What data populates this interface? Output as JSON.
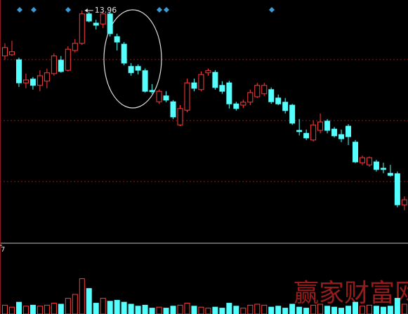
{
  "chart_data": {
    "type": "candlestick",
    "annotation": "13.96",
    "up_color": "#ff3c3c",
    "down_color": "#54ffff",
    "ylim": [
      8.46,
      14.21
    ],
    "open": [
      12.88,
      12.91,
      12.79,
      12.24,
      12.33,
      12.18,
      12.28,
      12.46,
      12.78,
      12.54,
      13.01,
      13.18,
      13.88,
      13.66,
      13.64,
      13.88,
      13.34,
      13.16,
      12.63,
      12.63,
      12.53,
      12.06,
      11.79,
      11.93,
      11.79,
      11.24,
      11.59,
      12.24,
      12.08,
      12.48,
      12.49,
      12.18,
      12.24,
      11.74,
      11.71,
      11.78,
      11.91,
      11.98,
      12.08,
      11.88,
      11.78,
      11.71,
      11.11,
      11.04,
      10.88,
      11.11,
      11.33,
      11.14,
      11.01,
      11.21,
      10.83,
      10.34,
      10.29,
      10.36,
      10.21,
      10.09,
      10.08,
      9.34
    ],
    "high": [
      13.18,
      13.24,
      12.84,
      12.46,
      12.38,
      12.54,
      12.58,
      12.94,
      12.88,
      13.11,
      13.28,
      13.96,
      13.93,
      13.74,
      13.93,
      13.93,
      13.41,
      13.21,
      12.71,
      12.68,
      12.58,
      12.21,
      12.08,
      12.04,
      11.83,
      11.71,
      12.34,
      12.34,
      12.51,
      12.58,
      12.54,
      12.28,
      12.29,
      11.79,
      11.84,
      12.08,
      12.24,
      12.24,
      12.13,
      11.96,
      11.88,
      11.74,
      11.38,
      11.13,
      11.34,
      11.51,
      11.38,
      11.19,
      11.13,
      11.26,
      10.88,
      10.51,
      10.49,
      10.41,
      10.34,
      10.29,
      10.13,
      9.54
    ],
    "low": [
      12.79,
      12.88,
      12.14,
      12.11,
      12.08,
      12.04,
      12.11,
      12.41,
      12.48,
      12.51,
      12.96,
      13.14,
      13.68,
      13.51,
      13.54,
      13.34,
      13.01,
      12.66,
      12.41,
      12.44,
      12.01,
      11.98,
      11.74,
      11.78,
      11.38,
      11.21,
      11.54,
      12.04,
      12.04,
      12.41,
      12.08,
      11.98,
      11.63,
      11.58,
      11.64,
      11.71,
      11.88,
      11.93,
      11.74,
      11.71,
      11.51,
      11.24,
      10.99,
      10.88,
      10.84,
      11.04,
      11.04,
      10.94,
      10.83,
      10.76,
      10.33,
      10.28,
      10.24,
      10.13,
      10.09,
      10.01,
      9.28,
      9.21
    ],
    "close": [
      13.08,
      12.98,
      12.24,
      12.31,
      12.18,
      12.41,
      12.48,
      12.88,
      12.51,
      13.04,
      13.18,
      13.88,
      13.71,
      13.61,
      13.88,
      13.41,
      13.21,
      12.71,
      12.48,
      12.54,
      12.04,
      12.03,
      12.04,
      11.83,
      11.43,
      11.63,
      12.24,
      12.11,
      12.44,
      12.53,
      12.13,
      12.04,
      11.74,
      11.63,
      11.78,
      12.01,
      12.18,
      12.18,
      11.79,
      11.74,
      11.58,
      11.28,
      11.08,
      10.93,
      11.24,
      11.31,
      11.11,
      10.98,
      10.91,
      10.96,
      10.36,
      10.46,
      10.46,
      10.18,
      10.18,
      10.04,
      9.34,
      9.46
    ],
    "volume": [
      0.9,
      0.7,
      1.2,
      0.8,
      0.9,
      0.8,
      0.9,
      1.1,
      1.0,
      1.6,
      2.0,
      3.6,
      2.6,
      1.1,
      1.6,
      1.3,
      1.4,
      1.2,
      1.0,
      0.8,
      0.9,
      0.6,
      0.7,
      0.6,
      0.8,
      0.9,
      1.1,
      0.8,
      0.7,
      0.6,
      0.7,
      0.6,
      1.1,
      0.8,
      0.6,
      0.9,
      1.0,
      0.9,
      0.7,
      0.8,
      0.6,
      1.0,
      0.7,
      0.6,
      0.9,
      1.0,
      0.8,
      0.7,
      0.6,
      0.8,
      1.2,
      0.8,
      0.9,
      0.8,
      0.7,
      0.8,
      1.6,
      1.0
    ],
    "volume_ylim": [
      0,
      7
    ],
    "volume_yticks": [
      7
    ],
    "watermark": "赢家财富网"
  }
}
